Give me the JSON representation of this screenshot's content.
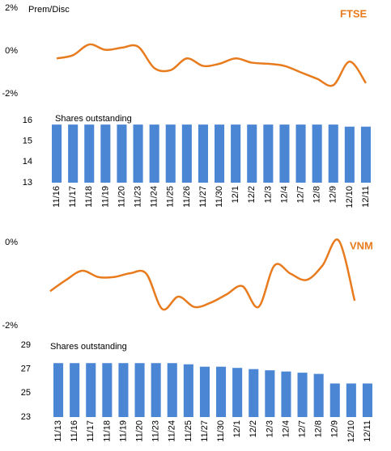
{
  "chart_data": [
    {
      "type": "line",
      "title": "Prem/Disc",
      "label": "FTSE",
      "color": "#e87b1e",
      "values": [
        -0.35,
        -0.2,
        0.3,
        0.05,
        0.15,
        0.2,
        -0.8,
        -0.9,
        -0.35,
        -0.7,
        -0.6,
        -0.35,
        -0.55,
        -0.6,
        -0.7,
        -1.0,
        -1.3,
        -1.6,
        -0.5,
        -1.5
      ],
      "ylim": [
        -2,
        2
      ],
      "yticks": [
        {
          "value": 2,
          "label": "2%"
        },
        {
          "value": 0,
          "label": "0%"
        },
        {
          "value": -2,
          "label": "-2%"
        }
      ]
    },
    {
      "type": "bar",
      "title": "Shares outstanding",
      "color": "#4a86d4",
      "categories": [
        "11/16",
        "11/17",
        "11/18",
        "11/19",
        "11/20",
        "11/23",
        "11/24",
        "11/25",
        "11/26",
        "11/27",
        "11/30",
        "12/1",
        "12/2",
        "12/3",
        "12/4",
        "12/7",
        "12/8",
        "12/9",
        "12/10",
        "12/11"
      ],
      "values": [
        15.8,
        15.8,
        15.8,
        15.8,
        15.8,
        15.8,
        15.8,
        15.8,
        15.8,
        15.8,
        15.8,
        15.8,
        15.8,
        15.8,
        15.8,
        15.8,
        15.8,
        15.8,
        15.7,
        15.7
      ],
      "ylim": [
        13,
        16
      ],
      "yticks": [
        16,
        15,
        14,
        13
      ]
    },
    {
      "type": "line",
      "label": "VNM",
      "color": "#e87b1e",
      "values": [
        -1.17,
        -0.9,
        -0.68,
        -0.83,
        -0.83,
        -0.74,
        -0.75,
        -1.6,
        -1.3,
        -1.55,
        -1.45,
        -1.25,
        -1.05,
        -1.55,
        -0.55,
        -0.75,
        -0.9,
        -0.55,
        0.05,
        -1.4
      ],
      "ylim": [
        -2,
        0
      ],
      "yticks": [
        {
          "value": 0,
          "label": "0%"
        },
        {
          "value": -2,
          "label": "-2%"
        }
      ]
    },
    {
      "type": "bar",
      "title": "Shares outstanding",
      "color": "#4a86d4",
      "categories": [
        "11/13",
        "11/16",
        "11/17",
        "11/18",
        "11/19",
        "11/20",
        "11/23",
        "11/24",
        "11/25",
        "11/27",
        "11/30",
        "12/1",
        "12/2",
        "12/3",
        "12/4",
        "12/7",
        "12/8",
        "12/9",
        "12/10",
        "12/11"
      ],
      "values": [
        27.5,
        27.5,
        27.5,
        27.5,
        27.5,
        27.5,
        27.5,
        27.5,
        27.4,
        27.2,
        27.2,
        27.1,
        27.0,
        26.9,
        26.8,
        26.7,
        26.6,
        25.8,
        25.8,
        25.8
      ],
      "ylim": [
        23,
        29
      ],
      "yticks": [
        29,
        27,
        25,
        23
      ]
    }
  ]
}
